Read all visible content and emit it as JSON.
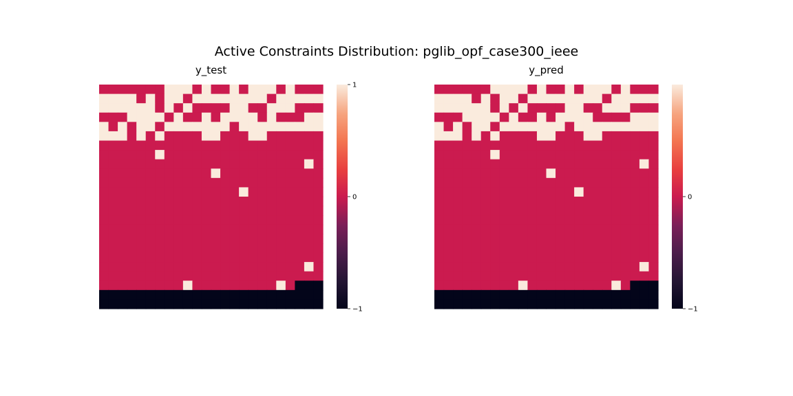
{
  "figure": {
    "suptitle": "Active Constraints Distribution: pglib_opf_case300_ieee"
  },
  "colors": {
    "positive": "#faebdd",
    "zero": "#cb1b4f",
    "negative": "#03051a"
  },
  "chart_data": [
    {
      "type": "heatmap",
      "title": "y_test",
      "colormap": "rocket",
      "vmin": -1,
      "vmax": 1,
      "colorbar_ticks": [
        "1",
        "0",
        "−1"
      ],
      "n_rows": 24,
      "n_cols": 24,
      "rows": [
        [
          0,
          0,
          0,
          0,
          0,
          0,
          0,
          1,
          1,
          1,
          0,
          1,
          0,
          0,
          1,
          0,
          1,
          1,
          1,
          0,
          1,
          0,
          0,
          0
        ],
        [
          1,
          1,
          1,
          1,
          0,
          1,
          0,
          1,
          1,
          0,
          1,
          1,
          1,
          1,
          1,
          1,
          1,
          1,
          0,
          1,
          1,
          1,
          1,
          1
        ],
        [
          1,
          1,
          1,
          1,
          1,
          1,
          0,
          1,
          0,
          1,
          0,
          0,
          0,
          0,
          1,
          1,
          0,
          0,
          1,
          1,
          1,
          0,
          0,
          0
        ],
        [
          0,
          0,
          0,
          1,
          1,
          1,
          1,
          0,
          1,
          0,
          0,
          1,
          0,
          1,
          1,
          1,
          1,
          0,
          1,
          0,
          0,
          0,
          1,
          1
        ],
        [
          1,
          0,
          1,
          0,
          1,
          1,
          0,
          1,
          1,
          1,
          1,
          1,
          1,
          1,
          0,
          1,
          1,
          1,
          1,
          1,
          1,
          1,
          1,
          1
        ],
        [
          1,
          1,
          1,
          0,
          1,
          0,
          1,
          0,
          0,
          0,
          0,
          1,
          1,
          0,
          0,
          0,
          1,
          1,
          0,
          0,
          0,
          0,
          0,
          0
        ],
        [
          0,
          0,
          0,
          0,
          0,
          0,
          0,
          0,
          0,
          0,
          0,
          0,
          0,
          0,
          0,
          0,
          0,
          0,
          0,
          0,
          0,
          0,
          0,
          0
        ],
        [
          0,
          0,
          0,
          0,
          0,
          0,
          1,
          0,
          0,
          0,
          0,
          0,
          0,
          0,
          0,
          0,
          0,
          0,
          0,
          0,
          0,
          0,
          0,
          0
        ],
        [
          0,
          0,
          0,
          0,
          0,
          0,
          0,
          0,
          0,
          0,
          0,
          0,
          0,
          0,
          0,
          0,
          0,
          0,
          0,
          0,
          0,
          0,
          1,
          0
        ],
        [
          0,
          0,
          0,
          0,
          0,
          0,
          0,
          0,
          0,
          0,
          0,
          0,
          1,
          0,
          0,
          0,
          0,
          0,
          0,
          0,
          0,
          0,
          0,
          0
        ],
        [
          0,
          0,
          0,
          0,
          0,
          0,
          0,
          0,
          0,
          0,
          0,
          0,
          0,
          0,
          0,
          0,
          0,
          0,
          0,
          0,
          0,
          0,
          0,
          0
        ],
        [
          0,
          0,
          0,
          0,
          0,
          0,
          0,
          0,
          0,
          0,
          0,
          0,
          0,
          0,
          0,
          1,
          0,
          0,
          0,
          0,
          0,
          0,
          0,
          0
        ],
        [
          0,
          0,
          0,
          0,
          0,
          0,
          0,
          0,
          0,
          0,
          0,
          0,
          0,
          0,
          0,
          0,
          0,
          0,
          0,
          0,
          0,
          0,
          0,
          0
        ],
        [
          0,
          0,
          0,
          0,
          0,
          0,
          0,
          0,
          0,
          0,
          0,
          0,
          0,
          0,
          0,
          0,
          0,
          0,
          0,
          0,
          0,
          0,
          0,
          0
        ],
        [
          0,
          0,
          0,
          0,
          0,
          0,
          0,
          0,
          0,
          0,
          0,
          0,
          0,
          0,
          0,
          0,
          0,
          0,
          0,
          0,
          0,
          0,
          0,
          0
        ],
        [
          0,
          0,
          0,
          0,
          0,
          0,
          0,
          0,
          0,
          0,
          0,
          0,
          0,
          0,
          0,
          0,
          0,
          0,
          0,
          0,
          0,
          0,
          0,
          0
        ],
        [
          0,
          0,
          0,
          0,
          0,
          0,
          0,
          0,
          0,
          0,
          0,
          0,
          0,
          0,
          0,
          0,
          0,
          0,
          0,
          0,
          0,
          0,
          0,
          0
        ],
        [
          0,
          0,
          0,
          0,
          0,
          0,
          0,
          0,
          0,
          0,
          0,
          0,
          0,
          0,
          0,
          0,
          0,
          0,
          0,
          0,
          0,
          0,
          0,
          0
        ],
        [
          0,
          0,
          0,
          0,
          0,
          0,
          0,
          0,
          0,
          0,
          0,
          0,
          0,
          0,
          0,
          0,
          0,
          0,
          0,
          0,
          0,
          0,
          0,
          0
        ],
        [
          0,
          0,
          0,
          0,
          0,
          0,
          0,
          0,
          0,
          0,
          0,
          0,
          0,
          0,
          0,
          0,
          0,
          0,
          0,
          0,
          0,
          0,
          1,
          0
        ],
        [
          0,
          0,
          0,
          0,
          0,
          0,
          0,
          0,
          0,
          0,
          0,
          0,
          0,
          0,
          0,
          0,
          0,
          0,
          0,
          0,
          0,
          0,
          0,
          0
        ],
        [
          0,
          0,
          0,
          0,
          0,
          0,
          0,
          0,
          0,
          1,
          0,
          0,
          0,
          0,
          0,
          0,
          0,
          0,
          0,
          1,
          0,
          -1,
          -1,
          -1
        ],
        [
          -1,
          -1,
          -1,
          -1,
          -1,
          -1,
          -1,
          -1,
          -1,
          -1,
          -1,
          -1,
          -1,
          -1,
          -1,
          -1,
          -1,
          -1,
          -1,
          -1,
          -1,
          -1,
          -1,
          -1
        ],
        [
          -1,
          -1,
          -1,
          -1,
          -1,
          -1,
          -1,
          -1,
          -1,
          -1,
          -1,
          -1,
          -1,
          -1,
          -1,
          -1,
          -1,
          -1,
          -1,
          -1,
          -1,
          -1,
          -1,
          -1
        ]
      ]
    },
    {
      "type": "heatmap",
      "title": "y_pred",
      "colormap": "rocket",
      "vmin": -1,
      "vmax": 0,
      "colorbar_ticks": [
        "0",
        "−1"
      ],
      "n_rows": 24,
      "n_cols": 24,
      "rows": [
        [
          0,
          0,
          0,
          0,
          0,
          0,
          1,
          1,
          1,
          1,
          0,
          1,
          0,
          0,
          1,
          0,
          1,
          1,
          1,
          0,
          1,
          0,
          0,
          0
        ],
        [
          1,
          1,
          1,
          1,
          0,
          1,
          0,
          1,
          1,
          0,
          1,
          1,
          1,
          1,
          1,
          1,
          1,
          1,
          0,
          1,
          1,
          1,
          1,
          1
        ],
        [
          1,
          1,
          1,
          1,
          1,
          1,
          0,
          1,
          0,
          1,
          0,
          0,
          0,
          0,
          1,
          1,
          0,
          0,
          1,
          1,
          1,
          0,
          0,
          0
        ],
        [
          0,
          0,
          0,
          1,
          1,
          1,
          1,
          0,
          1,
          0,
          0,
          1,
          0,
          1,
          1,
          1,
          1,
          0,
          0,
          0,
          0,
          1,
          1,
          1
        ],
        [
          1,
          0,
          1,
          0,
          1,
          1,
          0,
          1,
          1,
          1,
          1,
          1,
          1,
          1,
          0,
          1,
          1,
          1,
          1,
          1,
          1,
          1,
          1,
          1
        ],
        [
          1,
          1,
          1,
          0,
          1,
          0,
          1,
          0,
          0,
          0,
          0,
          1,
          1,
          0,
          0,
          0,
          1,
          1,
          0,
          0,
          0,
          0,
          0,
          0
        ],
        [
          0,
          0,
          0,
          0,
          0,
          0,
          0,
          0,
          0,
          0,
          0,
          0,
          0,
          0,
          0,
          0,
          0,
          0,
          0,
          0,
          0,
          0,
          0,
          0
        ],
        [
          0,
          0,
          0,
          0,
          0,
          0,
          1,
          0,
          0,
          0,
          0,
          0,
          0,
          0,
          0,
          0,
          0,
          0,
          0,
          0,
          0,
          0,
          0,
          0
        ],
        [
          0,
          0,
          0,
          0,
          0,
          0,
          0,
          0,
          0,
          0,
          0,
          0,
          0,
          0,
          0,
          0,
          0,
          0,
          0,
          0,
          0,
          0,
          1,
          0
        ],
        [
          0,
          0,
          0,
          0,
          0,
          0,
          0,
          0,
          0,
          0,
          0,
          0,
          1,
          0,
          0,
          0,
          0,
          0,
          0,
          0,
          0,
          0,
          0,
          0
        ],
        [
          0,
          0,
          0,
          0,
          0,
          0,
          0,
          0,
          0,
          0,
          0,
          0,
          0,
          0,
          0,
          0,
          0,
          0,
          0,
          0,
          0,
          0,
          0,
          0
        ],
        [
          0,
          0,
          0,
          0,
          0,
          0,
          0,
          0,
          0,
          0,
          0,
          0,
          0,
          0,
          0,
          1,
          0,
          0,
          0,
          0,
          0,
          0,
          0,
          0
        ],
        [
          0,
          0,
          0,
          0,
          0,
          0,
          0,
          0,
          0,
          0,
          0,
          0,
          0,
          0,
          0,
          0,
          0,
          0,
          0,
          0,
          0,
          0,
          0,
          0
        ],
        [
          0,
          0,
          0,
          0,
          0,
          0,
          0,
          0,
          0,
          0,
          0,
          0,
          0,
          0,
          0,
          0,
          0,
          0,
          0,
          0,
          0,
          0,
          0,
          0
        ],
        [
          0,
          0,
          0,
          0,
          0,
          0,
          0,
          0,
          0,
          0,
          0,
          0,
          0,
          0,
          0,
          0,
          0,
          0,
          0,
          0,
          0,
          0,
          0,
          0
        ],
        [
          0,
          0,
          0,
          0,
          0,
          0,
          0,
          0,
          0,
          0,
          0,
          0,
          0,
          0,
          0,
          0,
          0,
          0,
          0,
          0,
          0,
          0,
          0,
          0
        ],
        [
          0,
          0,
          0,
          0,
          0,
          0,
          0,
          0,
          0,
          0,
          0,
          0,
          0,
          0,
          0,
          0,
          0,
          0,
          0,
          0,
          0,
          0,
          0,
          0
        ],
        [
          0,
          0,
          0,
          0,
          0,
          0,
          0,
          0,
          0,
          0,
          0,
          0,
          0,
          0,
          0,
          0,
          0,
          0,
          0,
          0,
          0,
          0,
          0,
          0
        ],
        [
          0,
          0,
          0,
          0,
          0,
          0,
          0,
          0,
          0,
          0,
          0,
          0,
          0,
          0,
          0,
          0,
          0,
          0,
          0,
          0,
          0,
          0,
          0,
          0
        ],
        [
          0,
          0,
          0,
          0,
          0,
          0,
          0,
          0,
          0,
          0,
          0,
          0,
          0,
          0,
          0,
          0,
          0,
          0,
          0,
          0,
          0,
          0,
          1,
          0
        ],
        [
          0,
          0,
          0,
          0,
          0,
          0,
          0,
          0,
          0,
          0,
          0,
          0,
          0,
          0,
          0,
          0,
          0,
          0,
          0,
          0,
          0,
          0,
          0,
          0
        ],
        [
          0,
          0,
          0,
          0,
          0,
          0,
          0,
          0,
          0,
          1,
          0,
          0,
          0,
          0,
          0,
          0,
          0,
          0,
          0,
          1,
          0,
          -1,
          -1,
          -1
        ],
        [
          -1,
          -1,
          -1,
          -1,
          -1,
          -1,
          -1,
          -1,
          -1,
          -1,
          -1,
          -1,
          -1,
          -1,
          -1,
          -1,
          -1,
          -1,
          -1,
          -1,
          -1,
          -1,
          -1,
          -1
        ],
        [
          -1,
          -1,
          -1,
          -1,
          -1,
          -1,
          -1,
          -1,
          -1,
          -1,
          -1,
          -1,
          -1,
          -1,
          -1,
          -1,
          -1,
          -1,
          -1,
          -1,
          -1,
          -1,
          -1,
          -1
        ]
      ]
    }
  ]
}
